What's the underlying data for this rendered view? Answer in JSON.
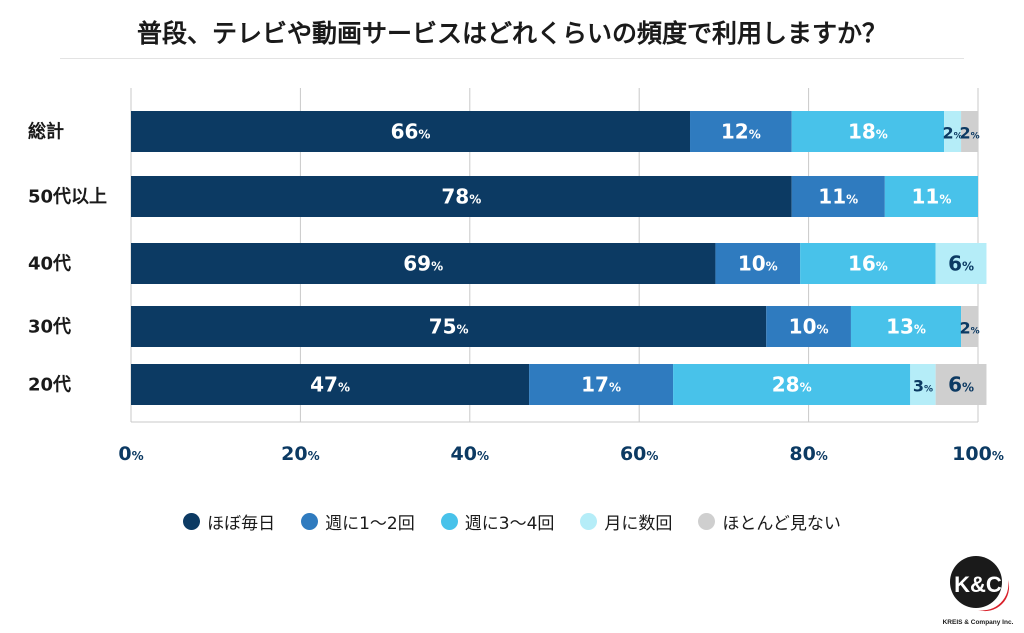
{
  "title": "普段、テレビや動画サービスはどれくらいの頻度で利用しますか？",
  "colors": {
    "series": [
      "#0c3a63",
      "#2f7bbf",
      "#48c2ea",
      "#b5edf8",
      "#cfcfcf"
    ],
    "grid": "#c9c9c9",
    "axis_text": "#0c3a63",
    "logo_red": "#d9202a"
  },
  "logo": {
    "text": "K&C",
    "sub": "KREIS & Company Inc."
  },
  "chart_data": {
    "type": "bar",
    "orientation": "horizontal",
    "stacked": true,
    "categories": [
      "総計",
      "50代以上",
      "40代",
      "30代",
      "20代"
    ],
    "series": [
      {
        "name": "ほぼ毎日",
        "values": [
          66,
          78,
          69,
          75,
          47
        ]
      },
      {
        "name": "週に1〜2回",
        "values": [
          12,
          11,
          10,
          10,
          17
        ]
      },
      {
        "name": "週に3〜4回",
        "values": [
          18,
          11,
          16,
          13,
          28
        ]
      },
      {
        "name": "月に数回",
        "values": [
          2,
          0,
          6,
          0,
          3
        ]
      },
      {
        "name": "ほとんど見ない",
        "values": [
          2,
          0,
          0,
          2,
          6
        ]
      }
    ],
    "xlim": [
      0,
      100
    ],
    "xticks": [
      0,
      20,
      40,
      60,
      80,
      100
    ],
    "tick_suffix": "%",
    "value_suffix": "%",
    "grid": true,
    "legend": "bottom"
  }
}
